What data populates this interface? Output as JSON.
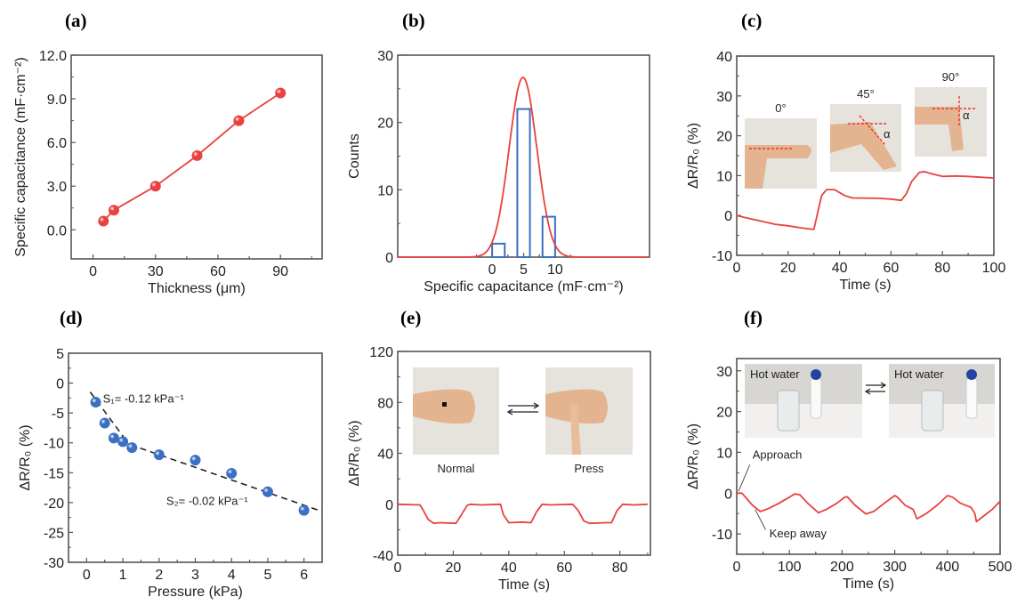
{
  "colors": {
    "red": "#e8413f",
    "blue": "#3a6fc4",
    "axis": "#555555",
    "dash": "#222222"
  },
  "chart_data": [
    {
      "panel": "(a)",
      "type": "line",
      "xlabel": "Thickness (μm)",
      "ylabel": "Specific capacitance (mF·cm⁻²)",
      "xlim": [
        -10.5,
        110
      ],
      "ylim": [
        -2.0,
        12.0
      ],
      "xticks": [
        0,
        30,
        60,
        90
      ],
      "xtick_labels": [
        "0",
        "30",
        "60",
        "90"
      ],
      "yticks": [
        0,
        3,
        6,
        9,
        12
      ],
      "ytick_labels": [
        "0.0",
        "3.0",
        "6.0",
        "9.0",
        "12.0"
      ],
      "marker": "sphere",
      "color": "#e8413f",
      "x": [
        5,
        10,
        30,
        50,
        70,
        90
      ],
      "y": [
        0.6,
        1.35,
        3.0,
        5.1,
        7.5,
        9.4
      ]
    },
    {
      "panel": "(b)",
      "type": "bar",
      "xlabel": "Specific capacitance (mF·cm⁻²)",
      "ylabel": "Counts",
      "xlim": [
        -15,
        25
      ],
      "ylim": [
        0,
        30
      ],
      "xticks": [
        0,
        5,
        10
      ],
      "xtick_labels": [
        "0",
        "5",
        "10"
      ],
      "yticks": [
        0,
        10,
        20,
        30
      ],
      "ytick_labels": [
        "0",
        "10",
        "20",
        "30"
      ],
      "bins": [
        {
          "from": 0,
          "to": 2,
          "count": 2
        },
        {
          "from": 4,
          "to": 6,
          "count": 22
        },
        {
          "from": 8,
          "to": 10,
          "count": 6
        }
      ],
      "bar_color": "#3a6fc4",
      "fit": {
        "type": "gaussian",
        "peak": 26.7,
        "center": 4.9,
        "sigma": 2.2,
        "color": "#e8413f"
      }
    },
    {
      "panel": "(c)",
      "type": "line",
      "xlabel": "Time (s)",
      "ylabel": "ΔR/R₀ (%)",
      "xlim": [
        0,
        100
      ],
      "ylim": [
        -10,
        40
      ],
      "xticks": [
        0,
        20,
        40,
        60,
        80,
        100
      ],
      "xtick_labels": [
        "0",
        "20",
        "40",
        "60",
        "80",
        "100"
      ],
      "yticks": [
        -10,
        0,
        10,
        20,
        30,
        40
      ],
      "ytick_labels": [
        "-10",
        "0",
        "10",
        "20",
        "30",
        "40"
      ],
      "color": "#e8413f",
      "x": [
        0,
        3,
        10,
        15,
        20,
        25,
        30,
        33,
        35,
        38,
        42,
        45,
        55,
        60,
        64,
        66,
        68,
        71,
        73,
        75,
        80,
        85,
        90,
        100
      ],
      "y": [
        0,
        -0.5,
        -1.5,
        -2.2,
        -2.6,
        -3.1,
        -3.5,
        5,
        6.5,
        6.5,
        5,
        4.4,
        4.3,
        4.1,
        3.8,
        5.5,
        8.5,
        10.8,
        11,
        10.6,
        9.8,
        9.9,
        9.8,
        9.4
      ],
      "insets": [
        {
          "label": "0°",
          "kind": "finger-0"
        },
        {
          "label": "45°",
          "kind": "finger-45",
          "angle": "α"
        },
        {
          "label": "90°",
          "kind": "finger-90",
          "angle": "α"
        }
      ]
    },
    {
      "panel": "(d)",
      "type": "scatter",
      "xlabel": "Pressure (kPa)",
      "ylabel": "ΔR/R₀ (%)",
      "xlim": [
        -0.5,
        6.5
      ],
      "ylim": [
        -30,
        5
      ],
      "xticks": [
        0,
        1,
        2,
        3,
        4,
        5,
        6
      ],
      "xtick_labels": [
        "0",
        "1",
        "2",
        "3",
        "4",
        "5",
        "6"
      ],
      "yticks": [
        -30,
        -25,
        -20,
        -15,
        -10,
        -5,
        0,
        5
      ],
      "ytick_labels": [
        "-30",
        "-25",
        "-20",
        "-15",
        "-10",
        "-5",
        "0",
        "5"
      ],
      "marker": "sphere",
      "color": "#3a6fc4",
      "x": [
        0.25,
        0.5,
        0.75,
        1.0,
        1.25,
        2,
        3,
        4,
        5,
        6
      ],
      "y": [
        -3.2,
        -6.7,
        -9.2,
        -9.8,
        -10.8,
        -12.0,
        -12.9,
        -15.1,
        -18.2,
        -21.3
      ],
      "fits": [
        {
          "label": "S₁= -0.12 kPa⁻¹",
          "x": [
            0.1,
            1.2
          ],
          "y": [
            -1.5,
            -10.5
          ]
        },
        {
          "label": "S₂= -0.02 kPa⁻¹",
          "x": [
            1.2,
            6.5
          ],
          "y": [
            -10.3,
            -21.5
          ]
        }
      ]
    },
    {
      "panel": "(e)",
      "type": "line",
      "xlabel": "Time (s)",
      "ylabel": "ΔR/R₀ (%)",
      "xlim": [
        0,
        91
      ],
      "ylim": [
        -40,
        120
      ],
      "xticks": [
        0,
        20,
        40,
        60,
        80
      ],
      "xtick_labels": [
        "0",
        "20",
        "40",
        "60",
        "80"
      ],
      "yticks": [
        -40,
        0,
        40,
        80,
        120
      ],
      "ytick_labels": [
        "-40",
        "0",
        "40",
        "80",
        "120"
      ],
      "color": "#e8413f",
      "x": [
        0,
        8,
        9,
        11,
        13,
        15,
        21,
        23,
        25,
        26,
        30,
        37,
        38,
        40,
        45,
        48,
        50,
        52,
        55,
        63,
        65,
        67,
        69,
        75,
        77,
        79,
        81,
        85,
        90
      ],
      "y": [
        0,
        -0.5,
        -4,
        -12,
        -15,
        -14.5,
        -15,
        -8,
        -1,
        0,
        -0.5,
        0,
        -8,
        -14.5,
        -14,
        -14.5,
        -6,
        0,
        -0.5,
        0,
        -5,
        -13,
        -15,
        -14.5,
        -14.5,
        -5,
        0,
        -0.5,
        0
      ],
      "insets": [
        {
          "label": "Normal",
          "kind": "wrist"
        },
        {
          "label": "Press",
          "kind": "wrist-press"
        }
      ]
    },
    {
      "panel": "(f)",
      "type": "line",
      "xlabel": "Time (s)",
      "ylabel": "ΔR/R₀ (%)",
      "xlim": [
        0,
        500
      ],
      "ylim": [
        -15,
        33
      ],
      "xticks": [
        0,
        100,
        200,
        300,
        400,
        500
      ],
      "xtick_labels": [
        "0",
        "100",
        "200",
        "300",
        "400",
        "500"
      ],
      "yticks": [
        -10,
        0,
        10,
        20,
        30
      ],
      "ytick_labels": [
        "-10",
        "0",
        "10",
        "20",
        "30"
      ],
      "color": "#e8413f",
      "x": [
        0,
        10,
        20,
        30,
        45,
        60,
        80,
        100,
        110,
        120,
        135,
        155,
        170,
        190,
        205,
        210,
        225,
        245,
        260,
        280,
        300,
        305,
        320,
        335,
        342,
        360,
        380,
        400,
        410,
        425,
        445,
        452,
        455,
        470,
        485,
        500
      ],
      "y": [
        0,
        0,
        -1.5,
        -3,
        -4.5,
        -3.8,
        -2.5,
        -1,
        -0.2,
        -0.4,
        -2.5,
        -4.8,
        -4,
        -2.5,
        -1,
        -0.9,
        -3,
        -5.1,
        -4.5,
        -2.5,
        -0.6,
        -1,
        -3,
        -4,
        -6.3,
        -5,
        -3,
        -0.6,
        -1,
        -2.5,
        -3.5,
        -5,
        -7,
        -5.5,
        -4,
        -2
      ],
      "annotations": [
        "Approach",
        "Keep away"
      ],
      "insets": [
        {
          "label": "Hot water",
          "kind": "bottle-near"
        },
        {
          "label": "Hot water",
          "kind": "bottle-far"
        }
      ]
    }
  ]
}
